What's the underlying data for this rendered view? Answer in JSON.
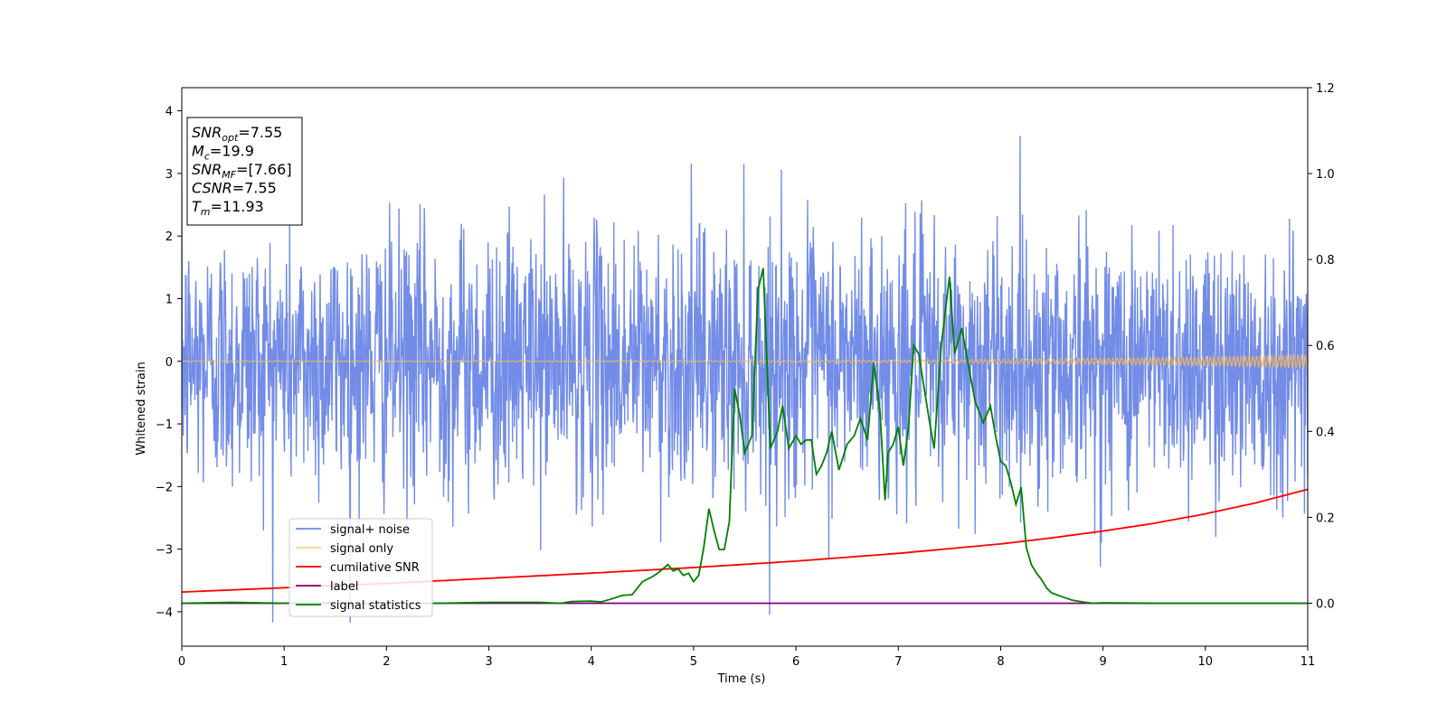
{
  "chart_data": {
    "type": "line",
    "xlabel": "Time (s)",
    "ylabel": "Whitened strain",
    "xlim": [
      0,
      11
    ],
    "ylim_left": [
      -4.55,
      4.37
    ],
    "ylim_right": [
      -0.1,
      1.2
    ],
    "xticks": [
      "0",
      "1",
      "2",
      "3",
      "4",
      "5",
      "6",
      "7",
      "8",
      "9",
      "10",
      "11"
    ],
    "yticks_left": [
      "4",
      "3",
      "2",
      "1",
      "0",
      "−1",
      "−2",
      "−3",
      "−4"
    ],
    "yticks_right": [
      "1.2",
      "1.0",
      "0.8",
      "0.6",
      "0.4",
      "0.2",
      "0.0"
    ],
    "grid": false,
    "legend_position": "lower-left",
    "stats_box": [
      {
        "sym": "SNR",
        "sub": "opt",
        "value": "=7.55"
      },
      {
        "sym": "M",
        "sub": "c",
        "value": "=19.9"
      },
      {
        "sym": "SNR",
        "sub": "MF",
        "value": "=[7.66]"
      },
      {
        "sym": "CSNR",
        "sub": "",
        "value": "=7.55"
      },
      {
        "sym": "T",
        "sub": "m",
        "value": "=11.93"
      }
    ],
    "series": [
      {
        "name": "signal+ noise",
        "color": "#6a86e6",
        "axis": "left",
        "kind": "noise",
        "std": 1.05,
        "min": -4.17,
        "max": 3.75
      },
      {
        "name": "signal only",
        "color": "#f5b85a",
        "axis": "left",
        "kind": "chirp",
        "amp_start": 0.005,
        "amp_end": 0.1
      },
      {
        "name": "cumilative SNR",
        "color": "#ff0000",
        "axis": "right",
        "x": [
          0,
          1,
          2,
          3,
          4,
          5,
          6,
          7,
          8,
          8.5,
          9,
          9.5,
          10,
          10.5,
          11
        ],
        "y": [
          0.026,
          0.036,
          0.046,
          0.058,
          0.07,
          0.083,
          0.098,
          0.116,
          0.138,
          0.152,
          0.168,
          0.186,
          0.208,
          0.234,
          0.265
        ]
      },
      {
        "name": "label",
        "color": "#800080",
        "axis": "right",
        "x": [
          0,
          11
        ],
        "y": [
          0,
          0
        ]
      },
      {
        "name": "signal statistics",
        "color": "#008000",
        "axis": "right",
        "x": [
          0,
          0.5,
          1,
          1.5,
          2,
          2.5,
          3,
          3.5,
          3.7,
          3.8,
          4,
          4.1,
          4.2,
          4.3,
          4.4,
          4.5,
          4.6,
          4.65,
          4.7,
          4.75,
          4.8,
          4.85,
          4.9,
          4.95,
          5.0,
          5.05,
          5.1,
          5.15,
          5.2,
          5.25,
          5.3,
          5.35,
          5.4,
          5.45,
          5.5,
          5.57,
          5.63,
          5.68,
          5.75,
          5.82,
          5.87,
          5.93,
          6.0,
          6.05,
          6.1,
          6.15,
          6.2,
          6.25,
          6.3,
          6.35,
          6.42,
          6.5,
          6.57,
          6.63,
          6.7,
          6.76,
          6.82,
          6.87,
          6.9,
          6.95,
          7.0,
          7.05,
          7.1,
          7.15,
          7.2,
          7.3,
          7.35,
          7.42,
          7.5,
          7.55,
          7.62,
          7.68,
          7.75,
          7.83,
          7.9,
          7.95,
          8.0,
          8.05,
          8.1,
          8.15,
          8.2,
          8.25,
          8.3,
          8.35,
          8.4,
          8.45,
          8.5,
          8.6,
          8.7,
          8.8,
          8.9,
          9.0,
          9.5,
          10,
          10.5,
          11
        ],
        "y": [
          0,
          0.002,
          0,
          0.001,
          0,
          0,
          0.002,
          0.002,
          0.0,
          0.004,
          0.005,
          0.003,
          0.01,
          0.018,
          0.02,
          0.05,
          0.062,
          0.07,
          0.08,
          0.09,
          0.075,
          0.08,
          0.065,
          0.07,
          0.05,
          0.065,
          0.13,
          0.22,
          0.17,
          0.125,
          0.125,
          0.19,
          0.5,
          0.44,
          0.35,
          0.39,
          0.73,
          0.78,
          0.36,
          0.4,
          0.46,
          0.36,
          0.39,
          0.37,
          0.38,
          0.38,
          0.3,
          0.32,
          0.35,
          0.4,
          0.31,
          0.37,
          0.39,
          0.43,
          0.38,
          0.56,
          0.45,
          0.24,
          0.35,
          0.37,
          0.41,
          0.32,
          0.41,
          0.6,
          0.58,
          0.43,
          0.36,
          0.6,
          0.76,
          0.58,
          0.64,
          0.56,
          0.47,
          0.42,
          0.46,
          0.39,
          0.33,
          0.32,
          0.28,
          0.23,
          0.27,
          0.13,
          0.09,
          0.07,
          0.055,
          0.035,
          0.024,
          0.015,
          0.007,
          0.003,
          0,
          0.001,
          0,
          0,
          0,
          0
        ]
      }
    ]
  }
}
